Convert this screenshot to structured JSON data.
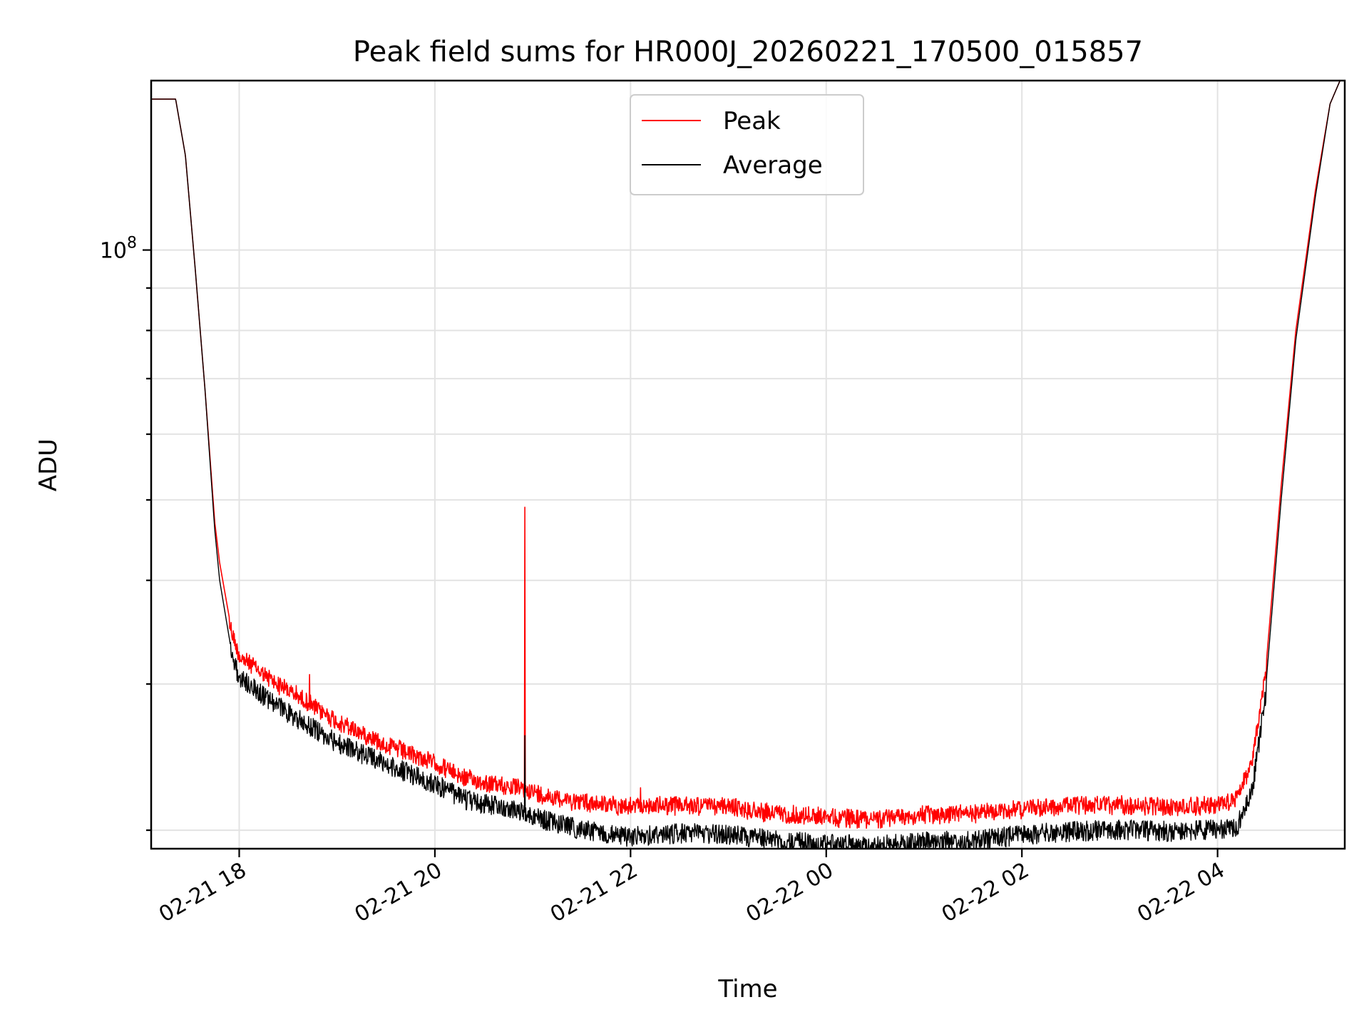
{
  "chart_data": {
    "type": "line",
    "title": "Peak field sums for HR000J_20260221_170500_015857",
    "xlabel": "Time",
    "ylabel": "ADU",
    "yscale": "log",
    "ylim": [
      19000000,
      160000000
    ],
    "xlim_hours": [
      17.1,
      29.3
    ],
    "x_ticks": [
      {
        "hour": 18,
        "label": "02-21 18"
      },
      {
        "hour": 20,
        "label": "02-21 20"
      },
      {
        "hour": 22,
        "label": "02-21 22"
      },
      {
        "hour": 24,
        "label": "02-22 00"
      },
      {
        "hour": 26,
        "label": "02-22 02"
      },
      {
        "hour": 28,
        "label": "02-22 04"
      }
    ],
    "y_major_ticks": [
      {
        "value": 100000000,
        "label_base": "10",
        "label_exp": "8"
      }
    ],
    "y_minor_ticks": [
      20000000,
      30000000,
      40000000,
      50000000,
      60000000,
      70000000,
      80000000,
      90000000
    ],
    "grid": true,
    "legend": {
      "position": "top-center",
      "entries": [
        "Peak",
        "Average"
      ]
    },
    "series": [
      {
        "name": "Peak",
        "color": "#ff0000",
        "x": [
          17.1,
          17.35,
          17.45,
          17.55,
          17.65,
          17.75,
          17.8,
          17.9,
          18.0,
          18.3,
          18.6,
          19.0,
          19.5,
          20.0,
          20.3,
          20.6,
          20.9,
          21.2,
          21.5,
          21.8,
          22.0,
          22.5,
          23.0,
          23.5,
          24.0,
          24.5,
          25.0,
          25.5,
          26.0,
          26.5,
          27.0,
          27.5,
          28.0,
          28.2,
          28.35,
          28.5,
          28.65,
          28.8,
          29.0,
          29.15,
          29.3
        ],
        "values": [
          152000000,
          152000000,
          130000000,
          95000000,
          68000000,
          47000000,
          42000000,
          36000000,
          33000000,
          31000000,
          29500000,
          27500000,
          25800000,
          24500000,
          23500000,
          23100000,
          22800000,
          22300000,
          22000000,
          21800000,
          21700000,
          21800000,
          21700000,
          21300000,
          21100000,
          21000000,
          21200000,
          21300000,
          21600000,
          21800000,
          21800000,
          21700000,
          21800000,
          22200000,
          24500000,
          32000000,
          52000000,
          80000000,
          118000000,
          150000000,
          165000000
        ],
        "spikes": [
          {
            "hour": 20.92,
            "value": 49000000
          },
          {
            "hour": 22.1,
            "value": 22500000
          },
          {
            "hour": 18.72,
            "value": 30800000
          }
        ]
      },
      {
        "name": "Average",
        "color": "#000000",
        "x": [
          17.1,
          17.35,
          17.45,
          17.55,
          17.65,
          17.75,
          17.8,
          17.9,
          18.0,
          18.3,
          18.6,
          19.0,
          19.5,
          20.0,
          20.3,
          20.6,
          20.9,
          21.2,
          21.5,
          21.8,
          22.0,
          22.5,
          23.0,
          23.5,
          24.0,
          24.5,
          25.0,
          25.5,
          26.0,
          26.5,
          27.0,
          27.5,
          28.0,
          28.2,
          28.35,
          28.5,
          28.65,
          28.8,
          29.0,
          29.15,
          29.3
        ],
        "values": [
          152000000,
          152000000,
          130000000,
          95000000,
          68000000,
          46000000,
          40000000,
          34000000,
          31500000,
          29500000,
          28000000,
          26200000,
          24700000,
          23400000,
          22400000,
          22000000,
          21700000,
          21000000,
          20600000,
          20300000,
          20200000,
          20400000,
          20300000,
          20000000,
          19800000,
          19700000,
          19900000,
          20000000,
          20300000,
          20500000,
          20600000,
          20500000,
          20600000,
          20800000,
          22800000,
          30500000,
          50000000,
          78000000,
          116000000,
          150000000,
          165000000
        ],
        "spikes": [
          {
            "hour": 20.92,
            "value": 26000000
          }
        ]
      }
    ]
  }
}
